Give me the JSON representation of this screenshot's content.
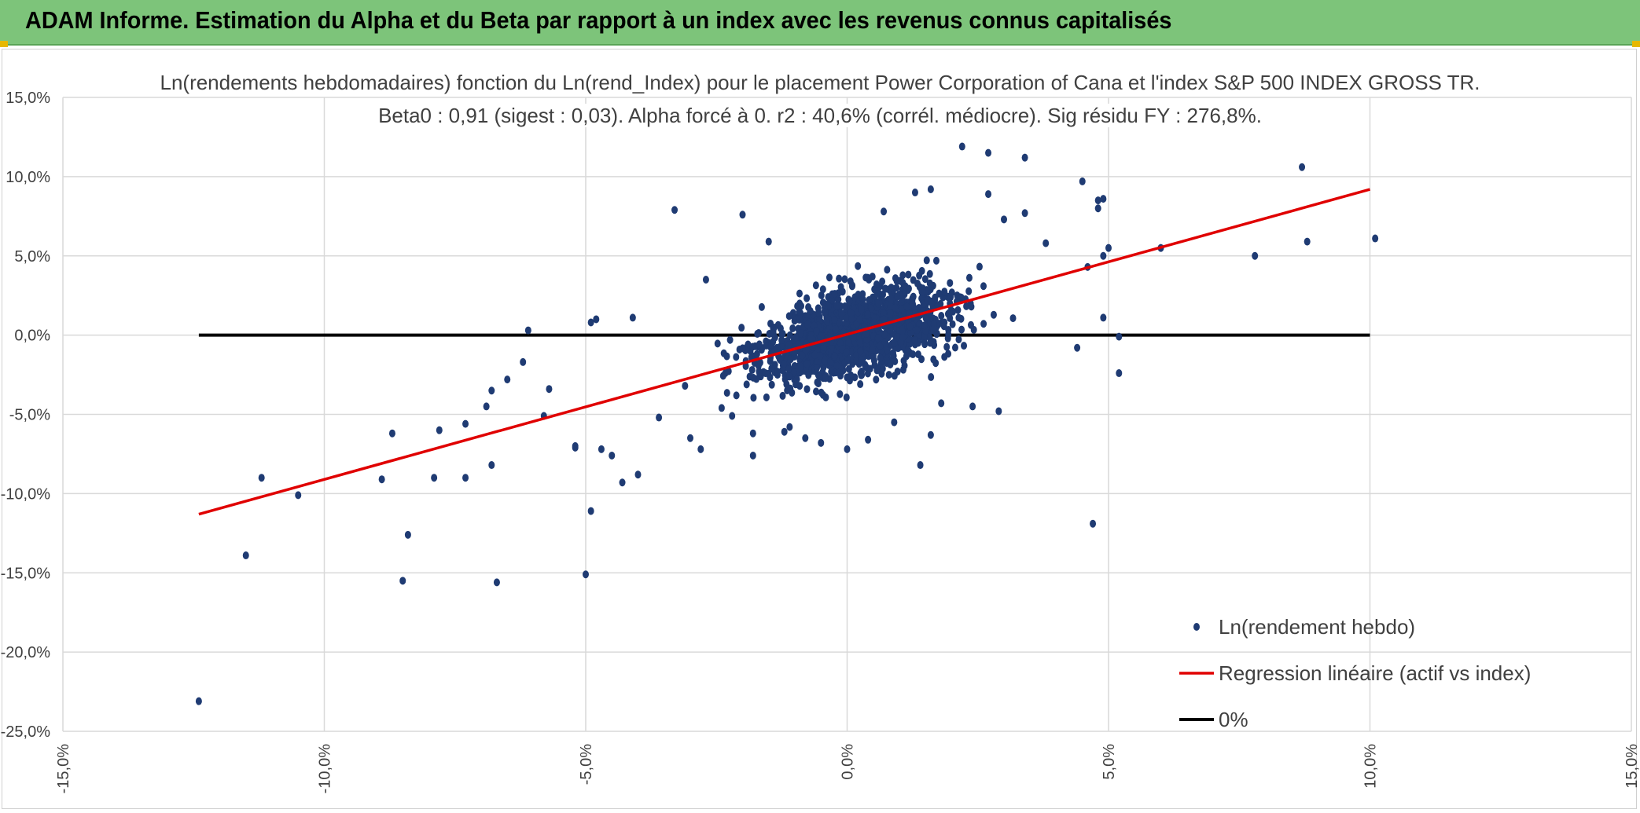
{
  "banner": {
    "title": "ADAM Informe. Estimation du Alpha et du Beta par rapport à un index avec les revenus connus capitalisés"
  },
  "colors": {
    "banner_bg": "#7dc47a",
    "points": "#1f3b73",
    "regression": "#e00000",
    "zero_line": "#000000",
    "grid": "#d9d9d9",
    "text": "#404040"
  },
  "chart_data": {
    "type": "scatter",
    "title": "Ln(rendements hebdomadaires) fonction du Ln(rend_Index) pour le placement Power Corporation of Cana et l'index S&P 500 INDEX GROSS TR.",
    "subtitle": "Beta0 : 0,91 (sigest : 0,03). Alpha forcé à 0. r2 : 40,6% (corrél. médiocre). Sig résidu FY : 276,8%.",
    "xlabel": "",
    "ylabel": "",
    "xlim": [
      -0.15,
      0.15
    ],
    "ylim": [
      -0.25,
      0.15
    ],
    "x_ticks": [
      "-15,0%",
      "-10,0%",
      "-5,0%",
      "0,0%",
      "5,0%",
      "10,0%",
      "15,0%"
    ],
    "y_ticks": [
      "15,0%",
      "10,0%",
      "5,0%",
      "0,0%",
      "-5,0%",
      "-10,0%",
      "-15,0%",
      "-20,0%",
      "-25,0%"
    ],
    "grid": true,
    "legend_position": "bottom-right",
    "series": [
      {
        "name": "Ln(rendement hebdo)",
        "type": "scatter",
        "x": [
          -0.124,
          -0.115,
          -0.112,
          -0.105,
          -0.089,
          -0.087,
          -0.085,
          -0.084,
          -0.079,
          -0.078,
          -0.073,
          -0.073,
          -0.069,
          -0.068,
          -0.068,
          -0.067,
          -0.065,
          -0.062,
          -0.061,
          -0.058,
          -0.057,
          -0.052,
          -0.052,
          -0.05,
          -0.049,
          -0.049,
          -0.048,
          -0.047,
          -0.045,
          -0.043,
          -0.041,
          -0.04,
          -0.036,
          -0.033,
          -0.031,
          -0.03,
          -0.028,
          -0.027,
          -0.024,
          -0.022,
          -0.02,
          -0.018,
          -0.018,
          -0.015,
          -0.012,
          -0.011,
          -0.008,
          -0.005,
          -0.004,
          0.0,
          0.004,
          0.007,
          0.008,
          0.009,
          0.013,
          0.014,
          0.016,
          0.016,
          0.018,
          0.022,
          0.024,
          0.027,
          0.027,
          0.029,
          0.03,
          0.034,
          0.034,
          0.038,
          0.044,
          0.045,
          0.046,
          0.047,
          0.048,
          0.048,
          0.049,
          0.049,
          0.049,
          0.05,
          0.052,
          0.052,
          0.06,
          0.078,
          0.087,
          0.088,
          0.101
        ],
        "y": [
          -0.231,
          -0.139,
          -0.09,
          -0.101,
          -0.091,
          -0.062,
          -0.155,
          -0.126,
          -0.09,
          -0.06,
          -0.09,
          -0.056,
          -0.045,
          -0.082,
          -0.035,
          -0.156,
          -0.028,
          -0.017,
          0.003,
          -0.051,
          -0.034,
          -0.071,
          -0.07,
          -0.151,
          -0.111,
          0.008,
          0.01,
          -0.072,
          -0.076,
          -0.093,
          0.011,
          -0.088,
          -0.052,
          0.079,
          -0.032,
          -0.065,
          -0.072,
          0.035,
          -0.046,
          -0.051,
          0.076,
          -0.076,
          -0.062,
          0.059,
          -0.061,
          -0.058,
          -0.065,
          -0.068,
          -0.005,
          -0.072,
          -0.066,
          0.078,
          -0.025,
          -0.055,
          0.09,
          -0.082,
          -0.063,
          0.092,
          -0.043,
          0.119,
          -0.045,
          0.115,
          0.089,
          -0.048,
          0.073,
          0.112,
          0.077,
          0.058,
          -0.008,
          0.097,
          0.043,
          -0.119,
          0.08,
          0.085,
          0.05,
          0.086,
          0.011,
          0.055,
          -0.001,
          -0.024,
          0.055,
          0.05,
          0.106,
          0.059,
          0.061
        ]
      },
      {
        "name": "Regression linéaire (actif vs index)",
        "type": "line",
        "x": [
          -0.124,
          0.1
        ],
        "y": [
          -0.113,
          0.092
        ]
      },
      {
        "name": "0%",
        "type": "line",
        "x": [
          -0.124,
          0.1
        ],
        "y": [
          0.0,
          0.0
        ]
      }
    ]
  }
}
